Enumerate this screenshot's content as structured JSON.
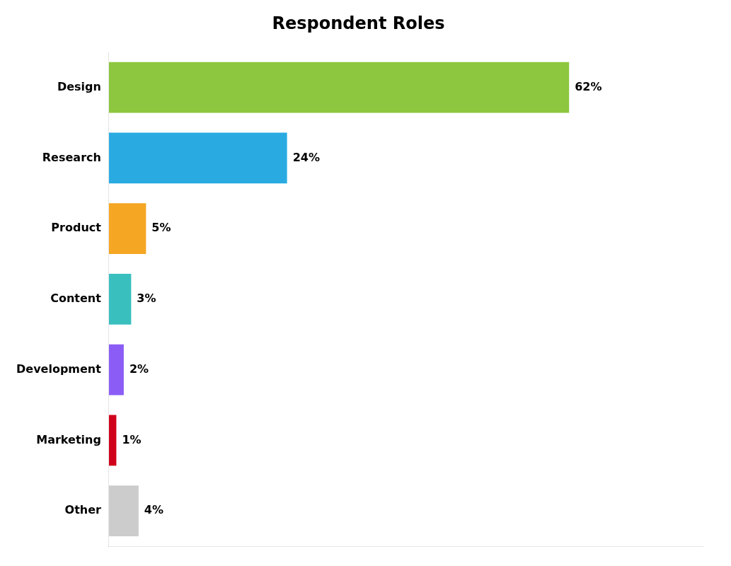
{
  "chart_data": {
    "type": "bar",
    "orientation": "horizontal",
    "title": "Respondent Roles",
    "categories": [
      "Design",
      "Research",
      "Product",
      "Content",
      "Development",
      "Marketing",
      "Other"
    ],
    "values": [
      62,
      24,
      5,
      3,
      2,
      1,
      4
    ],
    "value_labels": [
      "62%",
      "24%",
      "5%",
      "3%",
      "2%",
      "1%",
      "4%"
    ],
    "colors": [
      "#8DC63F",
      "#29ABE2",
      "#F5A623",
      "#3ABFBF",
      "#8B5CF6",
      "#D0021B",
      "#CCCCCC"
    ],
    "xlim": [
      0,
      80
    ],
    "grid": false,
    "data_labels": true,
    "tick_labels": "y"
  }
}
